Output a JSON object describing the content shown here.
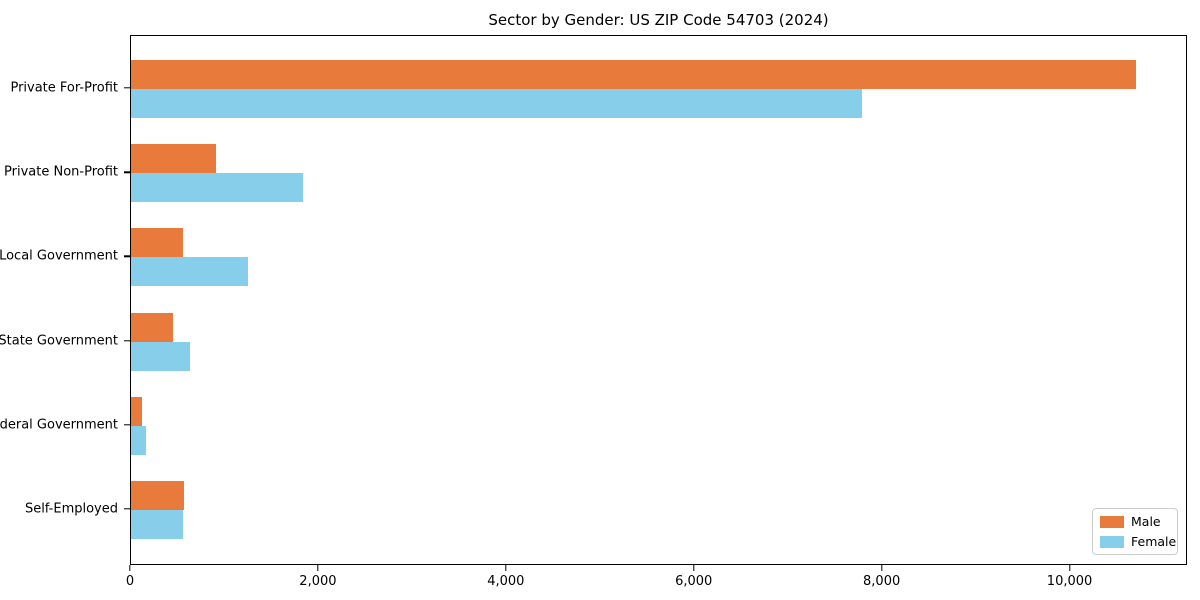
{
  "title": "Sector by Gender: US ZIP Code 54703 (2024)",
  "chart_data": {
    "type": "bar",
    "orientation": "horizontal",
    "title": "Sector by Gender: US ZIP Code 54703 (2024)",
    "xlabel": "",
    "ylabel": "",
    "categories": [
      "Private For-Profit",
      "Private Non-Profit",
      "Local Government",
      "State Government",
      "Federal Government",
      "Self-Employed"
    ],
    "series": [
      {
        "name": "Male",
        "color": "#e87b3c",
        "values": [
          10700,
          900,
          555,
          450,
          115,
          565
        ]
      },
      {
        "name": "Female",
        "color": "#87ceeb",
        "values": [
          7780,
          1835,
          1250,
          630,
          160,
          555
        ]
      }
    ],
    "xlim": [
      0,
      11250
    ],
    "xticks": [
      0,
      2000,
      4000,
      6000,
      8000,
      10000
    ],
    "xtick_labels": [
      "0",
      "2,000",
      "4,000",
      "6,000",
      "8,000",
      "10,000"
    ],
    "grid": false,
    "legend": {
      "position": "lower right",
      "entries": [
        "Male",
        "Female"
      ]
    }
  }
}
